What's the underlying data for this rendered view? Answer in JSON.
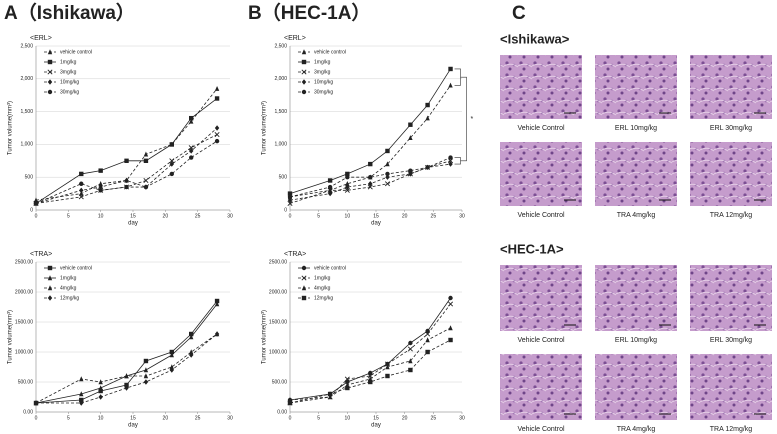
{
  "panels": {
    "a": "A（Ishikawa）",
    "b": "B（HEC-1A）",
    "c": "C"
  },
  "chart_data": [
    {
      "type": "line",
      "title": "<ERL>",
      "xlabel": "day",
      "ylabel": "Tumor volume(mm³)",
      "x": [
        0,
        7,
        10,
        14,
        17,
        21,
        24,
        28
      ],
      "xlim": [
        0,
        30
      ],
      "xticks": [
        0,
        5,
        10,
        15,
        20,
        25,
        30
      ],
      "ylim": [
        0,
        2500
      ],
      "yticks": [
        0,
        500,
        {
          "value": 1000,
          "label": "1,000"
        },
        {
          "value": 1500,
          "label": "1,500"
        },
        {
          "value": 2000,
          "label": "2,000"
        },
        {
          "value": 2500,
          "label": "2,500"
        }
      ],
      "grid": true,
      "series": [
        {
          "name": "vehicle control",
          "color": "#222222",
          "marker": "triangle",
          "dash": "dashed",
          "values": [
            150,
            250,
            400,
            450,
            850,
            1000,
            1350,
            1850
          ]
        },
        {
          "name": "1mg/kg",
          "color": "#222222",
          "marker": "square",
          "dash": "solid",
          "values": [
            100,
            550,
            600,
            750,
            750,
            1000,
            1400,
            1700
          ]
        },
        {
          "name": "3mg/kg",
          "color": "#222222",
          "marker": "x",
          "dash": "dashed",
          "values": [
            100,
            200,
            300,
            350,
            450,
            750,
            950,
            1150
          ]
        },
        {
          "name": "10mg/kg",
          "color": "#222222",
          "marker": "diamond",
          "dash": "dashed",
          "values": [
            100,
            300,
            350,
            450,
            350,
            700,
            900,
            1250
          ]
        },
        {
          "name": "30mg/kg",
          "color": "#222222",
          "marker": "circle",
          "dash": "dashed",
          "values": [
            100,
            400,
            300,
            350,
            350,
            550,
            800,
            1050
          ]
        }
      ]
    },
    {
      "type": "line",
      "title": "<TRA>",
      "xlabel": "day",
      "ylabel": "Tumor volume(mm³)",
      "x": [
        0,
        7,
        10,
        14,
        17,
        21,
        24,
        28
      ],
      "xlim": [
        0,
        30
      ],
      "xticks": [
        0,
        5,
        10,
        15,
        20,
        25,
        30
      ],
      "ylim": [
        0,
        2500
      ],
      "yticks": [
        {
          "value": 0,
          "label": "0.00"
        },
        {
          "value": 500,
          "label": "500.00"
        },
        {
          "value": 1000,
          "label": "1000.00"
        },
        {
          "value": 1500,
          "label": "1500.00"
        },
        {
          "value": 2000,
          "label": "2000.00"
        },
        {
          "value": 2500,
          "label": "2500.00"
        }
      ],
      "grid": true,
      "series": [
        {
          "name": "vehicle control",
          "color": "#222222",
          "marker": "square",
          "dash": "solid",
          "values": [
            150,
            200,
            350,
            450,
            850,
            1000,
            1300,
            1850
          ]
        },
        {
          "name": "1mg/kg",
          "color": "#222222",
          "marker": "triangle",
          "dash": "solid",
          "values": [
            150,
            300,
            400,
            600,
            700,
            950,
            1250,
            1800
          ]
        },
        {
          "name": "4mg/kg",
          "color": "#222222",
          "marker": "triangle",
          "dash": "dashed",
          "values": [
            150,
            550,
            500,
            600,
            600,
            750,
            1000,
            1300
          ]
        },
        {
          "name": "12mg/kg",
          "color": "#222222",
          "marker": "diamond",
          "dash": "dashed",
          "values": [
            150,
            150,
            250,
            400,
            500,
            700,
            950,
            1300
          ]
        }
      ]
    },
    {
      "type": "line",
      "title": "<ERL>",
      "xlabel": "day",
      "ylabel": "Tumor volume(mm³)",
      "annotation": "*",
      "x": [
        0,
        7,
        10,
        14,
        17,
        21,
        24,
        28
      ],
      "xlim": [
        0,
        30
      ],
      "xticks": [
        0,
        5,
        10,
        15,
        20,
        25,
        30
      ],
      "ylim": [
        0,
        2500
      ],
      "yticks": [
        0,
        500,
        {
          "value": 1000,
          "label": "1,000"
        },
        {
          "value": 1500,
          "label": "1,500"
        },
        {
          "value": 2000,
          "label": "2,000"
        },
        {
          "value": 2500,
          "label": "2,500"
        }
      ],
      "grid": true,
      "series": [
        {
          "name": "vehicle control",
          "color": "#222222",
          "marker": "triangle",
          "dash": "dashed",
          "values": [
            200,
            300,
            400,
            500,
            700,
            1100,
            1400,
            1900
          ]
        },
        {
          "name": "1mg/kg",
          "color": "#222222",
          "marker": "square",
          "dash": "solid",
          "values": [
            250,
            450,
            550,
            700,
            900,
            1300,
            1600,
            2150
          ]
        },
        {
          "name": "3mg/kg",
          "color": "#222222",
          "marker": "x",
          "dash": "dashed",
          "values": [
            100,
            300,
            300,
            350,
            400,
            550,
            650,
            750
          ]
        },
        {
          "name": "10mg/kg",
          "color": "#222222",
          "marker": "diamond",
          "dash": "dashed",
          "values": [
            150,
            250,
            350,
            400,
            500,
            550,
            650,
            700
          ]
        },
        {
          "name": "30mg/kg",
          "color": "#222222",
          "marker": "circle",
          "dash": "dashed",
          "values": [
            200,
            350,
            500,
            500,
            550,
            600,
            650,
            800
          ]
        }
      ]
    },
    {
      "type": "line",
      "title": "<TRA>",
      "xlabel": "day",
      "ylabel": "Tumor volume(mm³)",
      "x": [
        0,
        7,
        10,
        14,
        17,
        21,
        24,
        28
      ],
      "xlim": [
        0,
        30
      ],
      "xticks": [
        0,
        5,
        10,
        15,
        20,
        25,
        30
      ],
      "ylim": [
        0,
        2500
      ],
      "yticks": [
        {
          "value": 0,
          "label": "0.00"
        },
        {
          "value": 500,
          "label": "500.00"
        },
        {
          "value": 1000,
          "label": "1000.00"
        },
        {
          "value": 1500,
          "label": "1500.00"
        },
        {
          "value": 2000,
          "label": "2000.00"
        },
        {
          "value": 2500,
          "label": "2500.00"
        }
      ],
      "grid": true,
      "series": [
        {
          "name": "vehicle control",
          "color": "#222222",
          "marker": "circle",
          "dash": "solid",
          "values": [
            200,
            300,
            500,
            650,
            800,
            1150,
            1350,
            1900
          ]
        },
        {
          "name": "1mg/kg",
          "color": "#222222",
          "marker": "x",
          "dash": "dashed",
          "values": [
            150,
            250,
            550,
            600,
            800,
            1050,
            1300,
            1800
          ]
        },
        {
          "name": "4mg/kg",
          "color": "#222222",
          "marker": "triangle",
          "dash": "dashed",
          "values": [
            200,
            250,
            450,
            550,
            750,
            850,
            1200,
            1400
          ]
        },
        {
          "name": "12mg/kg",
          "color": "#222222",
          "marker": "square",
          "dash": "dashed",
          "values": [
            150,
            300,
            400,
            500,
            600,
            700,
            1000,
            1200
          ]
        }
      ]
    }
  ],
  "histology": {
    "groups": [
      {
        "title": "<Ishikawa>",
        "captions": [
          "Vehicle Control",
          "ERL 10mg/kg",
          "ERL 30mg/kg",
          "Vehicle Control",
          "TRA 4mg/kg",
          "TRA 12mg/kg"
        ]
      },
      {
        "title": "<HEC-1A>",
        "captions": [
          "Vehicle Control",
          "ERL 10mg/kg",
          "ERL 30mg/kg",
          "Vehicle Control",
          "TRA 4mg/kg",
          "TRA 12mg/kg"
        ]
      }
    ]
  }
}
